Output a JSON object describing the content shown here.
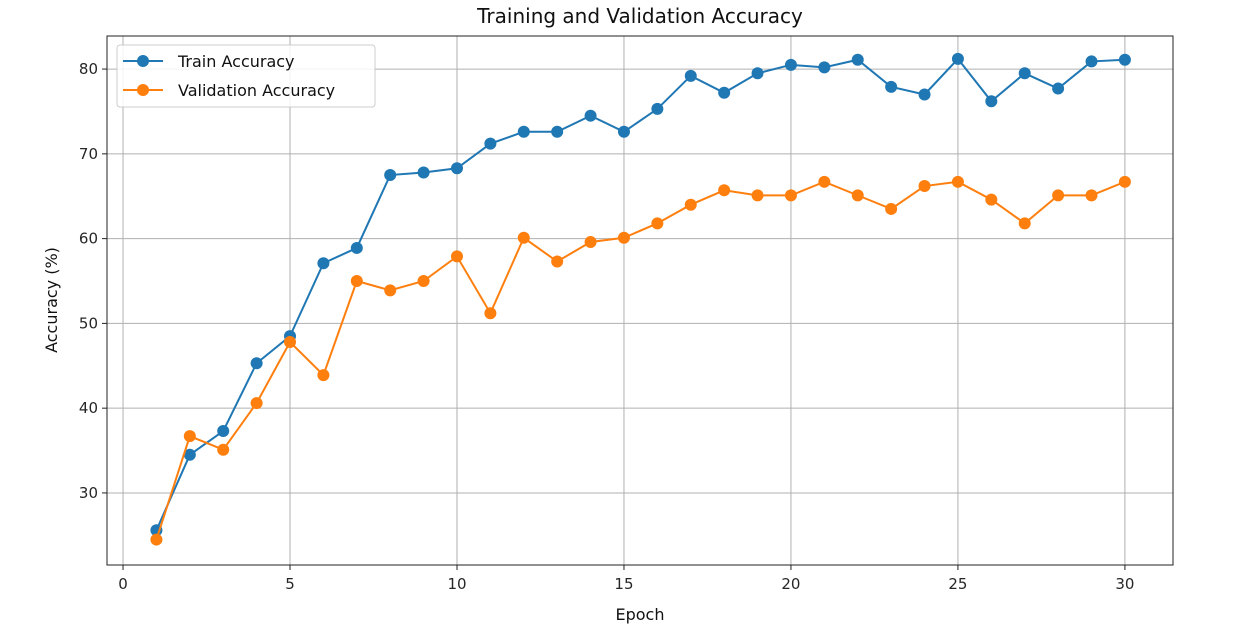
{
  "chart_data": {
    "type": "line",
    "title": "Training and Validation Accuracy",
    "xlabel": "Epoch",
    "ylabel": "Accuracy (%)",
    "xlim": [
      -0.48,
      31.44
    ],
    "ylim": [
      21.5,
      83.9
    ],
    "xticks": [
      0,
      5,
      10,
      15,
      20,
      25,
      30
    ],
    "yticks": [
      30,
      40,
      50,
      60,
      70,
      80
    ],
    "grid": true,
    "legend_position": "top-left",
    "x": [
      1,
      2,
      3,
      4,
      5,
      6,
      7,
      8,
      9,
      10,
      11,
      12,
      13,
      14,
      15,
      16,
      17,
      18,
      19,
      20,
      21,
      22,
      23,
      24,
      25,
      26,
      27,
      28,
      29,
      30
    ],
    "series": [
      {
        "name": "Train Accuracy",
        "color": "#1f77b4",
        "values": [
          25.6,
          34.5,
          37.3,
          45.3,
          48.5,
          57.1,
          58.9,
          67.5,
          67.8,
          68.3,
          71.2,
          72.6,
          72.6,
          74.5,
          72.6,
          75.3,
          79.2,
          77.2,
          79.5,
          80.5,
          80.2,
          81.1,
          77.9,
          77.0,
          81.2,
          76.2,
          79.5,
          77.7,
          80.9,
          81.1
        ]
      },
      {
        "name": "Validation Accuracy",
        "color": "#ff7f0e",
        "values": [
          24.5,
          36.7,
          35.1,
          40.6,
          47.8,
          43.9,
          55.0,
          53.9,
          55.0,
          57.9,
          51.2,
          60.1,
          57.3,
          59.6,
          60.1,
          61.8,
          64.0,
          65.7,
          65.1,
          65.1,
          66.7,
          65.1,
          63.5,
          66.2,
          66.7,
          64.6,
          61.8,
          65.1,
          65.1,
          66.7
        ]
      }
    ]
  }
}
